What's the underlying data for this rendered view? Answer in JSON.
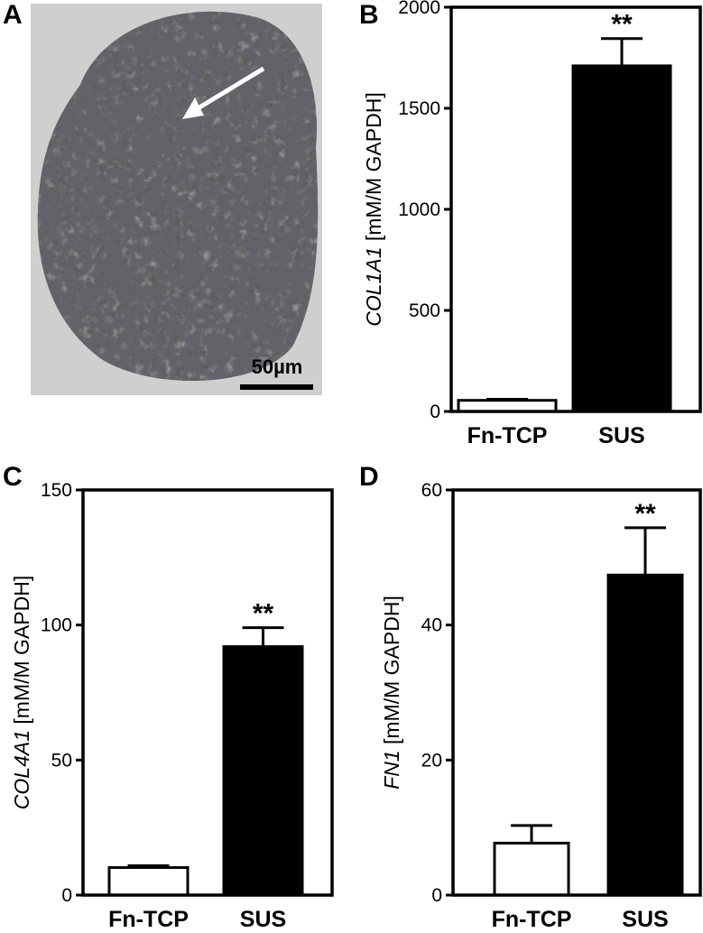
{
  "panels": {
    "a": {
      "letter": "A",
      "scale_bar_label": "50µm"
    },
    "b": {
      "letter": "B"
    },
    "c": {
      "letter": "C"
    },
    "d": {
      "letter": "D"
    }
  },
  "chart_data": [
    {
      "panel": "B",
      "type": "bar",
      "categories": [
        "Fn-TCP",
        "SUS"
      ],
      "values": [
        55,
        1710
      ],
      "errors": [
        5,
        135
      ],
      "bar_colors": [
        "#ffffff",
        "#000000"
      ],
      "significance": [
        "",
        "**"
      ],
      "ylabel_gene": "COL1A1",
      "ylabel_unit": " [mM/M GAPDH]",
      "ylim": [
        0,
        2000
      ],
      "yticks": [
        0,
        500,
        1000,
        1500,
        2000
      ],
      "title": "",
      "xlabel": ""
    },
    {
      "panel": "C",
      "type": "bar",
      "categories": [
        "Fn-TCP",
        "SUS"
      ],
      "values": [
        10.2,
        92
      ],
      "errors": [
        0.7,
        7
      ],
      "bar_colors": [
        "#ffffff",
        "#000000"
      ],
      "significance": [
        "",
        "**"
      ],
      "ylabel_gene": "COL4A1",
      "ylabel_unit": " [mM/M GAPDH]",
      "ylim": [
        0,
        150
      ],
      "yticks": [
        0,
        50,
        100,
        150
      ],
      "title": "",
      "xlabel": ""
    },
    {
      "panel": "D",
      "type": "bar",
      "categories": [
        "Fn-TCP",
        "SUS"
      ],
      "values": [
        7.7,
        47.4
      ],
      "errors": [
        2.6,
        7.0
      ],
      "bar_colors": [
        "#ffffff",
        "#000000"
      ],
      "significance": [
        "",
        "**"
      ],
      "ylabel_gene": "FN1",
      "ylabel_unit": " [mM/M GAPDH]",
      "ylim": [
        0,
        60
      ],
      "yticks": [
        0,
        20,
        40,
        60
      ],
      "title": "",
      "xlabel": ""
    }
  ]
}
